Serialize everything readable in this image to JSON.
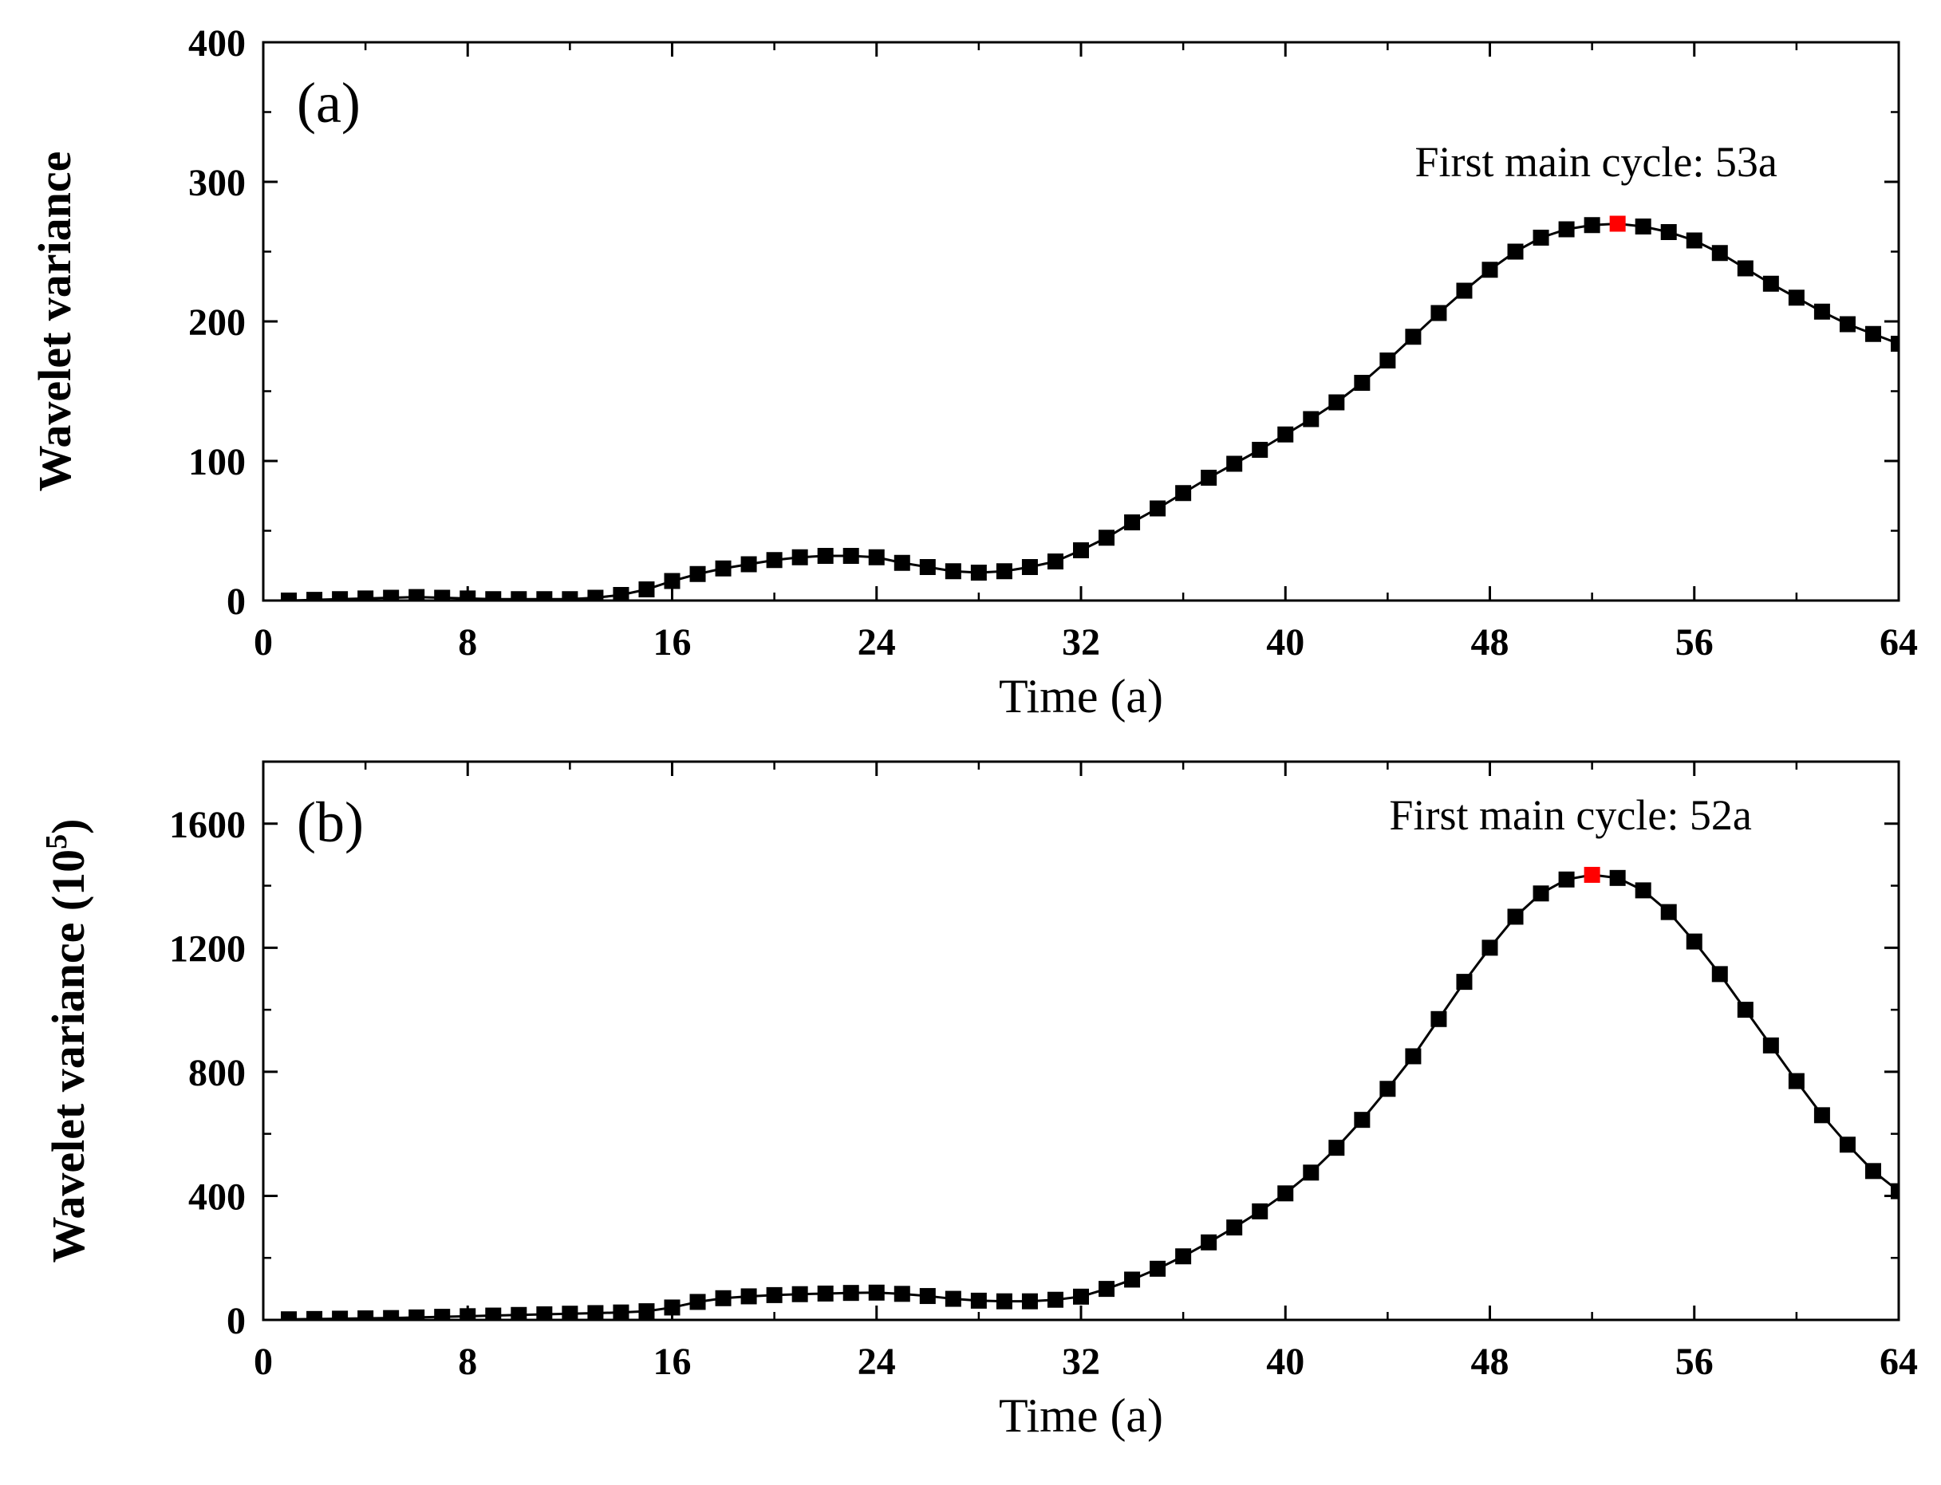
{
  "chart_data": [
    {
      "type": "line",
      "panel_label": "(a)",
      "annotation": "First main cycle: 53a",
      "xlabel": "Time (a)",
      "ylabel": "Wavelet variance",
      "ylabel_sup": "",
      "ylabel_suffix": "",
      "xlim": [
        0,
        64
      ],
      "ylim": [
        0,
        400
      ],
      "xticks": [
        0,
        8,
        16,
        24,
        32,
        40,
        48,
        56,
        64
      ],
      "yticks": [
        0,
        100,
        200,
        300,
        400
      ],
      "line_color": "#000000",
      "marker_color": "#000000",
      "highlight_color": "#ff0000",
      "highlight_x": 53,
      "x": [
        1,
        2,
        3,
        4,
        5,
        6,
        7,
        8,
        9,
        10,
        11,
        12,
        13,
        14,
        15,
        16,
        17,
        18,
        19,
        20,
        21,
        22,
        23,
        24,
        25,
        26,
        27,
        28,
        29,
        30,
        31,
        32,
        33,
        34,
        35,
        36,
        37,
        38,
        39,
        40,
        41,
        42,
        43,
        44,
        45,
        46,
        47,
        48,
        49,
        50,
        51,
        52,
        53,
        54,
        55,
        56,
        57,
        58,
        59,
        60,
        61,
        62,
        63,
        64
      ],
      "y": [
        0,
        0.5,
        1,
        1.5,
        2,
        2.5,
        2,
        1.5,
        1,
        1,
        1,
        1,
        2,
        4,
        8,
        14,
        19,
        23,
        26,
        29,
        31,
        32,
        32,
        31,
        27,
        24,
        21,
        20,
        21,
        24,
        28,
        36,
        45,
        56,
        66,
        77,
        88,
        98,
        108,
        119,
        130,
        142,
        156,
        172,
        189,
        206,
        222,
        237,
        250,
        260,
        266,
        269,
        270,
        268,
        264,
        258,
        249,
        238,
        227,
        217,
        207,
        198,
        191,
        184
      ]
    },
    {
      "type": "line",
      "panel_label": "(b)",
      "annotation": "First main cycle: 52a",
      "xlabel": "Time (a)",
      "ylabel": "Wavelet variance (10",
      "ylabel_sup": "5",
      "ylabel_suffix": ")",
      "xlim": [
        0,
        64
      ],
      "ylim": [
        0,
        1800
      ],
      "xticks": [
        0,
        8,
        16,
        24,
        32,
        40,
        48,
        56,
        64
      ],
      "yticks": [
        0,
        400,
        800,
        1200,
        1600
      ],
      "line_color": "#000000",
      "marker_color": "#000000",
      "highlight_color": "#ff0000",
      "highlight_x": 52,
      "x": [
        1,
        2,
        3,
        4,
        5,
        6,
        7,
        8,
        9,
        10,
        11,
        12,
        13,
        14,
        15,
        16,
        17,
        18,
        19,
        20,
        21,
        22,
        23,
        24,
        25,
        26,
        27,
        28,
        29,
        30,
        31,
        32,
        33,
        34,
        35,
        36,
        37,
        38,
        39,
        40,
        41,
        42,
        43,
        44,
        45,
        46,
        47,
        48,
        49,
        50,
        51,
        52,
        53,
        54,
        55,
        56,
        57,
        58,
        59,
        60,
        61,
        62,
        63,
        64
      ],
      "y": [
        2,
        3,
        4,
        5,
        6,
        8,
        10,
        12,
        14,
        16,
        18,
        20,
        22,
        24,
        28,
        40,
        58,
        70,
        76,
        80,
        83,
        85,
        87,
        88,
        84,
        77,
        68,
        62,
        60,
        60,
        65,
        75,
        100,
        130,
        165,
        205,
        250,
        298,
        350,
        408,
        475,
        555,
        645,
        745,
        850,
        970,
        1090,
        1200,
        1300,
        1375,
        1420,
        1435,
        1425,
        1385,
        1315,
        1220,
        1115,
        1000,
        885,
        770,
        660,
        565,
        480,
        415
      ]
    }
  ]
}
